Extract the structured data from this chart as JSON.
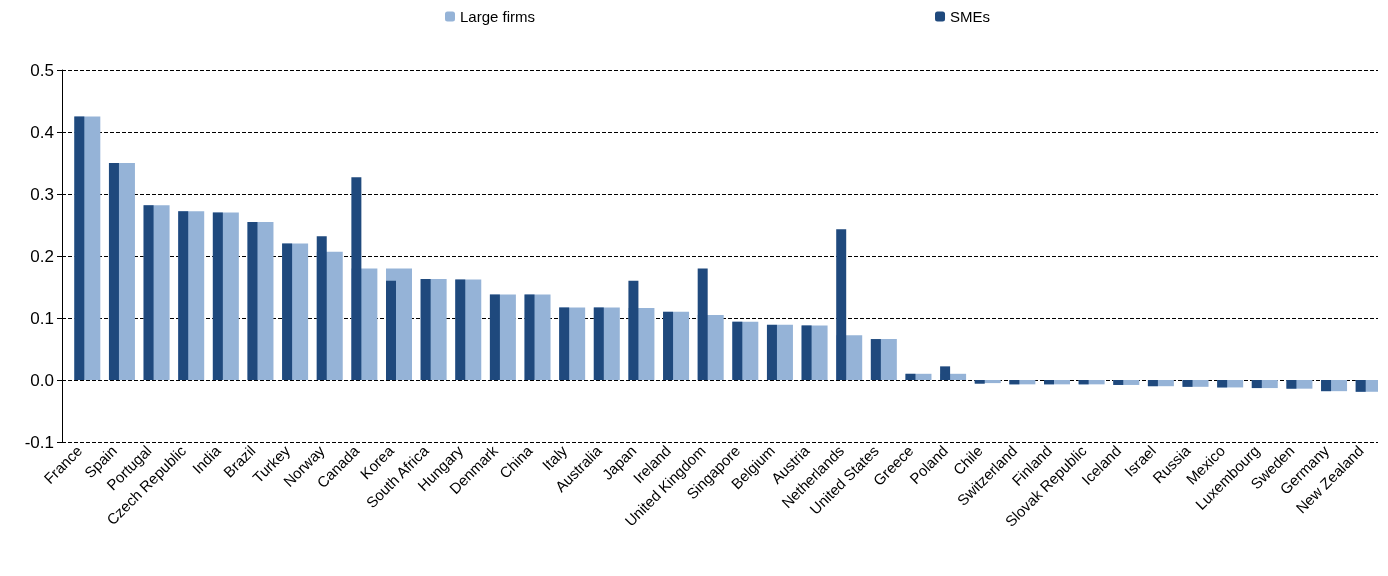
{
  "chart_data": {
    "type": "bar",
    "categories": [
      "France",
      "Spain",
      "Portugal",
      "Czech Republic",
      "India",
      "Brazil",
      "Turkey",
      "Norway",
      "Canada",
      "Korea",
      "South Africa",
      "Hungary",
      "Denmark",
      "China",
      "Italy",
      "Australia",
      "Japan",
      "Ireland",
      "United Kingdom",
      "Singapore",
      "Belgium",
      "Austria",
      "Netherlands",
      "United States",
      "Greece",
      "Poland",
      "Chile",
      "Switzerland",
      "Finland",
      "Slovak Republic",
      "Iceland",
      "Israel",
      "Russia",
      "Mexico",
      "Luxembourg",
      "Sweden",
      "Germany",
      "New Zealand"
    ],
    "series": [
      {
        "name": "Large firms",
        "color": "#95b3d7",
        "values": [
          0.425,
          0.35,
          0.282,
          0.272,
          0.27,
          0.255,
          0.22,
          0.207,
          0.18,
          0.18,
          0.163,
          0.162,
          0.138,
          0.138,
          0.117,
          0.117,
          0.116,
          0.11,
          0.105,
          0.094,
          0.089,
          0.088,
          0.072,
          0.066,
          0.01,
          0.01,
          -0.005,
          -0.007,
          -0.007,
          -0.007,
          -0.008,
          -0.01,
          -0.011,
          -0.012,
          -0.013,
          -0.014,
          -0.018,
          -0.019
        ]
      },
      {
        "name": "SMEs",
        "color": "#1f497d",
        "values": [
          0.425,
          0.35,
          0.282,
          0.272,
          0.27,
          0.255,
          0.22,
          0.232,
          0.327,
          0.16,
          0.163,
          0.162,
          0.138,
          0.138,
          0.117,
          0.117,
          0.16,
          0.11,
          0.18,
          0.094,
          0.089,
          0.088,
          0.243,
          0.066,
          0.01,
          0.022,
          -0.006,
          -0.007,
          -0.007,
          -0.007,
          -0.008,
          -0.01,
          -0.011,
          -0.012,
          -0.013,
          -0.014,
          -0.018,
          -0.019
        ]
      }
    ],
    "ylim": [
      -0.1,
      0.5
    ],
    "yticks": [
      {
        "value": -0.1,
        "label": "-0.1"
      },
      {
        "value": 0,
        "label": "0.0"
      },
      {
        "value": 0.1,
        "label": "0.1"
      },
      {
        "value": 0.2,
        "label": "0.2"
      },
      {
        "value": 0.3,
        "label": "0.3"
      },
      {
        "value": 0.4,
        "label": "0.4"
      },
      {
        "value": 0.5,
        "label": "0.5"
      }
    ],
    "grid": "y",
    "legend": "top"
  }
}
